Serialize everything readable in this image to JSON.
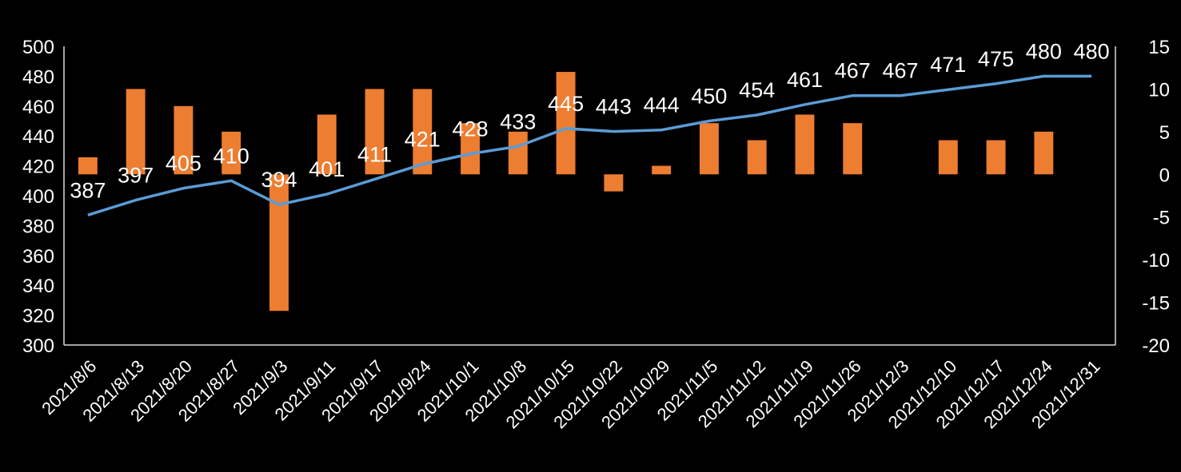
{
  "chart_data": {
    "type": "bar+line",
    "title": "",
    "categories": [
      "2021/8/6",
      "2021/8/13",
      "2021/8/20",
      "2021/8/27",
      "2021/9/3",
      "2021/9/11",
      "2021/9/17",
      "2021/9/24",
      "2021/10/1",
      "2021/10/8",
      "2021/10/15",
      "2021/10/22",
      "2021/10/29",
      "2021/11/5",
      "2021/11/12",
      "2021/11/19",
      "2021/11/26",
      "2021/12/3",
      "2021/12/10",
      "2021/12/17",
      "2021/12/24",
      "2021/12/31"
    ],
    "series": [
      {
        "name": "line",
        "type": "line",
        "axis": "left",
        "color": "#5b9bd5",
        "values": [
          387,
          397,
          405,
          410,
          394,
          401,
          411,
          421,
          428,
          433,
          445,
          443,
          444,
          450,
          454,
          461,
          467,
          467,
          471,
          475,
          480,
          480
        ],
        "labels": [
          "387",
          "397",
          "405",
          "410",
          "394",
          "401",
          "411",
          "421",
          "428",
          "433",
          "445",
          "443",
          "444",
          "450",
          "454",
          "461",
          "467",
          "467",
          "471",
          "475",
          "480",
          "480"
        ]
      },
      {
        "name": "bars",
        "type": "bar",
        "axis": "right",
        "color": "#ed7d31",
        "values": [
          2,
          10,
          8,
          5,
          -16,
          7,
          10,
          10,
          6,
          5,
          12,
          -2,
          1,
          6,
          4,
          7,
          6,
          0,
          4,
          4,
          5,
          0
        ]
      }
    ],
    "y_left": {
      "min": 300,
      "max": 500,
      "ticks": [
        "300",
        "320",
        "340",
        "360",
        "380",
        "400",
        "420",
        "440",
        "460",
        "480",
        "500"
      ]
    },
    "y_right": {
      "min": -20,
      "max": 15,
      "ticks": [
        "-20",
        "-15",
        "-10",
        "-5",
        "0",
        "5",
        "10",
        "15"
      ]
    },
    "background": "#000000",
    "grid": false,
    "legend": "none"
  }
}
